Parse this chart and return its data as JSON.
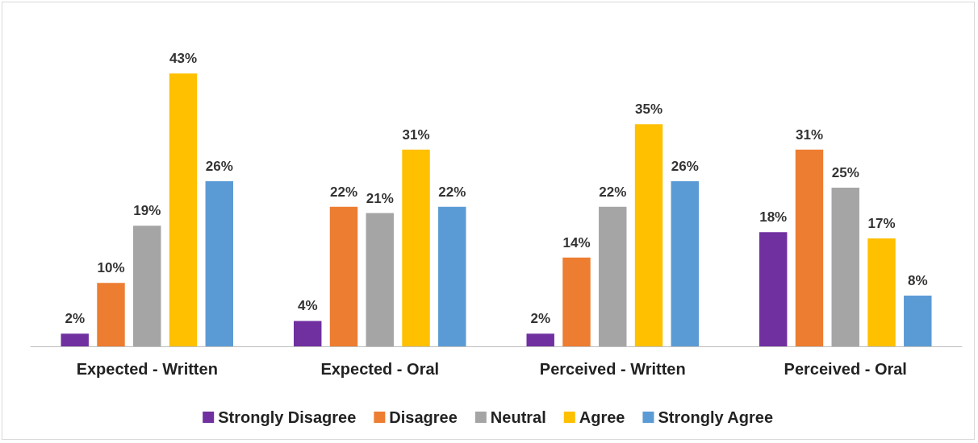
{
  "chart_data": {
    "type": "bar",
    "categories": [
      "Expected - Written",
      "Expected - Oral",
      "Perceived - Written",
      "Perceived - Oral"
    ],
    "series": [
      {
        "name": "Strongly Disagree",
        "color": "#7030a0",
        "values": [
          2,
          4,
          2,
          18
        ],
        "value_labels": [
          "2%",
          "4%",
          "2%",
          "18%"
        ]
      },
      {
        "name": "Disagree",
        "color": "#ed7d31",
        "values": [
          10,
          22,
          14,
          31
        ],
        "value_labels": [
          "10%",
          "22%",
          "14%",
          "31%"
        ]
      },
      {
        "name": "Neutral",
        "color": "#a5a5a5",
        "values": [
          19,
          21,
          22,
          25
        ],
        "value_labels": [
          "19%",
          "21%",
          "22%",
          "25%"
        ]
      },
      {
        "name": "Agree",
        "color": "#ffc000",
        "values": [
          43,
          31,
          35,
          17
        ],
        "value_labels": [
          "43%",
          "31%",
          "35%",
          "17%"
        ]
      },
      {
        "name": "Strongly Agree",
        "color": "#5b9bd5",
        "values": [
          26,
          22,
          26,
          8
        ],
        "value_labels": [
          "26%",
          "22%",
          "26%",
          "8%"
        ]
      }
    ],
    "legend": "bottom"
  }
}
